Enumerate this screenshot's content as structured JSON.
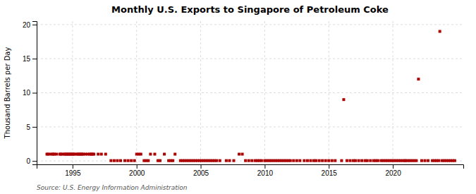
{
  "chart_data": {
    "type": "scatter",
    "title": "Monthly U.S. Exports to Singapore of Petroleum Coke",
    "ylabel": "Thousand Barrels per Day",
    "annotations": [
      "Source: U.S. Energy Information Administration"
    ],
    "color": "#aa0000",
    "marker": "square",
    "grid": true,
    "xlim": [
      1992.2,
      2025.5
    ],
    "ylim": [
      -0.5,
      20.5
    ],
    "xticks": [
      1995,
      2000,
      2005,
      2010,
      2015,
      2020
    ],
    "yticks": [
      0,
      5,
      10,
      15,
      20
    ],
    "x": [
      1993,
      1993.0833333333333,
      1993.25,
      1993.4166666666667,
      1993.5,
      1993.5833333333333,
      1993.75,
      1994,
      1994.0833333333333,
      1994.1666666666667,
      1994.3333333333333,
      1994.4166666666667,
      1994.5,
      1994.5833333333333,
      1994.6666666666667,
      1994.75,
      1994.8333333333333,
      1994.9166666666667,
      1995,
      1995.0833333333333,
      1995.1666666666667,
      1995.3333333333333,
      1995.4166666666667,
      1995.5,
      1995.5833333333333,
      1995.6666666666667,
      1995.75,
      1995.8333333333333,
      1996,
      1996.1666666666667,
      1996.3333333333333,
      1996.4166666666667,
      1996.5,
      1996.5833333333333,
      1996.6666666666667,
      1997,
      1997.25,
      1997.5833333333333,
      1998,
      1998.25,
      1998.5,
      1998.75,
      1999.0833333333333,
      1999.3333333333333,
      1999.5833333333333,
      1999.8333333333333,
      2000,
      2000.1666666666667,
      2000.3333333333333,
      2000.5833333333333,
      2000.75,
      2000.9166666666667,
      2001.0833333333333,
      2001.4166666666667,
      2001.6666666666667,
      2001.8333333333333,
      2002.1666666666667,
      2002.5,
      2002.6666666666667,
      2002.8333333333333,
      2003,
      2003.4166666666667,
      2003.5833333333333,
      2003.75,
      2003.9166666666667,
      2004.0833333333333,
      2004.25,
      2004.4166666666667,
      2004.5833333333333,
      2004.75,
      2004.9166666666667,
      2005.0833333333333,
      2005.25,
      2005.4166666666667,
      2005.5833333333333,
      2005.75,
      2005.9166666666667,
      2006.0833333333333,
      2006.25,
      2006.5,
      2007,
      2007.25,
      2007.5833333333333,
      2008,
      2008.25,
      2008.5,
      2008.75,
      2009,
      2009.25,
      2009.4166666666667,
      2009.5833333333333,
      2009.75,
      2010,
      2010.1666666666667,
      2010.3333333333333,
      2010.5,
      2010.6666666666667,
      2010.8333333333333,
      2011,
      2011.1666666666667,
      2011.3333333333333,
      2011.5,
      2011.6666666666667,
      2011.8333333333333,
      2012,
      2012.25,
      2012.5,
      2012.75,
      2013.0833333333333,
      2013.3333333333333,
      2013.5833333333333,
      2013.8333333333333,
      2014,
      2014.25,
      2014.5,
      2014.75,
      2015,
      2015.25,
      2015.5,
      2016,
      2016.1666666666667,
      2016.4166666666667,
      2016.6666666666667,
      2016.9166666666667,
      2017.0833333333333,
      2017.3333333333333,
      2017.5833333333333,
      2017.8333333333333,
      2018,
      2018.25,
      2018.5,
      2018.6666666666667,
      2018.8333333333333,
      2019.0833333333333,
      2019.25,
      2019.4166666666667,
      2019.5833333333333,
      2019.75,
      2019.9166666666667,
      2020.0833333333333,
      2020.25,
      2020.4166666666667,
      2020.5833333333333,
      2020.75,
      2020.9166666666667,
      2021,
      2021.1666666666667,
      2021.3333333333333,
      2021.5,
      2021.6666666666667,
      2021.8333333333333,
      2022,
      2022.25,
      2022.5,
      2022.75,
      2023.0833333333333,
      2023.25,
      2023.4166666666667,
      2023.5833333333333,
      2023.6666666666667,
      2023.8333333333333,
      2024,
      2024.1666666666667,
      2024.3333333333333,
      2024.5,
      2024.6666666666667,
      2024.8333333333333
    ],
    "values": [
      1,
      1,
      1,
      1,
      1,
      1,
      1,
      1,
      1,
      1,
      1,
      1,
      1,
      1,
      1,
      1,
      1,
      1,
      1,
      1,
      1,
      1,
      1,
      1,
      1,
      1,
      1,
      1,
      1,
      1,
      1,
      1,
      1,
      1,
      1,
      1,
      1,
      1,
      0.05,
      0.05,
      0.05,
      0.05,
      0.05,
      0.05,
      0.05,
      0.05,
      1,
      1,
      1,
      0.05,
      0.05,
      0.05,
      1,
      1,
      0.05,
      0.05,
      1,
      0.05,
      0.05,
      0.05,
      1,
      0.05,
      0.05,
      0.05,
      0.05,
      0.05,
      0.05,
      0.05,
      0.05,
      0.05,
      0.05,
      0.05,
      0.05,
      0.05,
      0.05,
      0.05,
      0.05,
      0.05,
      0.05,
      0.05,
      0.05,
      0.05,
      0.05,
      1,
      1,
      0.05,
      0.05,
      0.05,
      0.05,
      0.05,
      0.05,
      0.05,
      0.05,
      0.05,
      0.05,
      0.05,
      0.05,
      0.05,
      0.05,
      0.05,
      0.05,
      0.05,
      0.05,
      0.05,
      0.05,
      0.05,
      0.05,
      0.05,
      0.05,
      0.05,
      0.05,
      0.05,
      0.05,
      0.05,
      0.05,
      0.05,
      0.05,
      0.05,
      0.05,
      0.05,
      9,
      0.05,
      0.05,
      0.05,
      0.05,
      0.05,
      0.05,
      0.05,
      0.05,
      0.05,
      0.05,
      0.05,
      0.05,
      0.05,
      0.05,
      0.05,
      0.05,
      0.05,
      0.05,
      0.05,
      0.05,
      0.05,
      0.05,
      0.05,
      0.05,
      0.05,
      0.05,
      0.05,
      0.05,
      0.05,
      0.05,
      12,
      0.05,
      0.05,
      0.05,
      0.05,
      0.05,
      0.05,
      0.05,
      19,
      0.05,
      0.05,
      0.05,
      0.05,
      0.05,
      0.05,
      0.05
    ]
  }
}
